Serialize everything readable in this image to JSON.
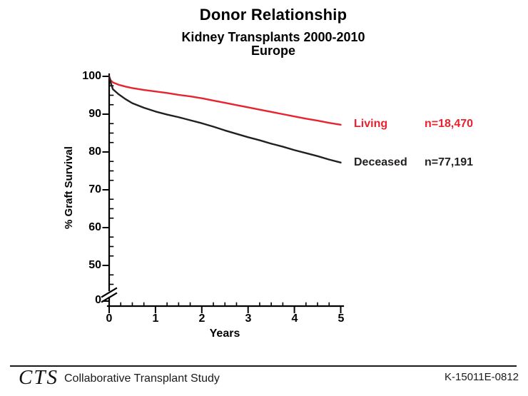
{
  "chart_data": {
    "type": "line",
    "title": "Donor Relationship",
    "subtitle": "Kidney Transplants 2000-2010",
    "subtitle2": "Europe",
    "xlabel": "Years",
    "ylabel": "% Graft Survival",
    "xlim": [
      0,
      5
    ],
    "ylim": [
      50,
      100
    ],
    "y_axis_break_to_zero": true,
    "grid": "off",
    "legend_position": "right-of-curve-ends",
    "x_ticks": [
      "0",
      "1",
      "2",
      "3",
      "4",
      "5"
    ],
    "x_minor_tick_step": 0.25,
    "y_ticks": [
      "100",
      "90",
      "80",
      "70",
      "60",
      "50",
      "0"
    ],
    "y_minor_tick_step": 2.5,
    "series": [
      {
        "name": "Living",
        "n_label": "n=18,470",
        "color": "#e8222e",
        "x": [
          0,
          0.03,
          0.08,
          0.2,
          0.35,
          0.5,
          0.75,
          1,
          1.25,
          1.5,
          1.75,
          2,
          2.25,
          2.5,
          2.75,
          3,
          3.25,
          3.5,
          3.75,
          4,
          4.25,
          4.5,
          4.75,
          5
        ],
        "y": [
          100,
          99.0,
          98.4,
          97.8,
          97.3,
          96.9,
          96.4,
          96.0,
          95.6,
          95.1,
          94.7,
          94.2,
          93.6,
          93.0,
          92.4,
          91.8,
          91.2,
          90.6,
          90.0,
          89.4,
          88.8,
          88.3,
          87.7,
          87.2
        ]
      },
      {
        "name": "Deceased",
        "n_label": "n=77,191",
        "color": "#231f20",
        "x": [
          0,
          0.03,
          0.08,
          0.2,
          0.35,
          0.5,
          0.75,
          1,
          1.25,
          1.5,
          1.75,
          2,
          2.25,
          2.5,
          2.75,
          3,
          3.25,
          3.5,
          3.75,
          4,
          4.25,
          4.5,
          4.75,
          5
        ],
        "y": [
          100,
          98.5,
          96.6,
          95.3,
          94.0,
          92.9,
          91.7,
          90.7,
          89.9,
          89.2,
          88.4,
          87.6,
          86.7,
          85.7,
          84.8,
          83.9,
          83.1,
          82.2,
          81.4,
          80.5,
          79.7,
          78.9,
          78.0,
          77.2
        ]
      }
    ],
    "axis_color": "#000000"
  },
  "footer": {
    "logo": "CTS",
    "org_name": "Collaborative Transplant Study",
    "ref_code": "K-15011E-0812"
  }
}
